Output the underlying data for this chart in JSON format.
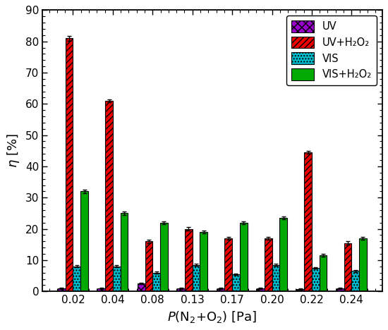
{
  "categories": [
    "0.02",
    "0.04",
    "0.08",
    "0.13",
    "0.17",
    "0.20",
    "0.22",
    "0.24"
  ],
  "UV": [
    1.0,
    1.0,
    2.5,
    1.0,
    1.0,
    1.0,
    0.8,
    1.0
  ],
  "UV_H2O2": [
    81.0,
    61.0,
    16.0,
    20.0,
    17.0,
    17.0,
    44.5,
    15.5
  ],
  "VIS": [
    8.0,
    8.0,
    6.0,
    8.5,
    5.5,
    8.5,
    7.5,
    6.5
  ],
  "VIS_H2O2": [
    32.0,
    25.0,
    22.0,
    19.0,
    22.0,
    23.5,
    11.5,
    17.0
  ],
  "UV_H2O2_err": [
    0.8,
    0.5,
    0.5,
    0.5,
    0.5,
    0.5,
    0.5,
    0.5
  ],
  "UV_err": [
    0.2,
    0.2,
    0.2,
    0.2,
    0.2,
    0.2,
    0.2,
    0.2
  ],
  "VIS_err": [
    0.3,
    0.3,
    0.3,
    0.3,
    0.3,
    0.3,
    0.3,
    0.3
  ],
  "VIS_H2O2_err": [
    0.5,
    0.5,
    0.5,
    0.5,
    0.5,
    0.5,
    0.5,
    0.5
  ],
  "color_UV": "#9900cc",
  "color_UV_H2O2": "#ee0000",
  "color_VIS": "#00bbcc",
  "color_VIS_H2O2": "#00aa00",
  "hatch_UV": "xxx",
  "hatch_UV_H2O2": "////",
  "hatch_VIS": "....",
  "hatch_VIS_H2O2": "====",
  "ylabel": "η [%]",
  "ylim": [
    0,
    90
  ],
  "yticks": [
    0,
    10,
    20,
    30,
    40,
    50,
    60,
    70,
    80,
    90
  ],
  "legend_labels": [
    "UV",
    "UV+H₂O₂",
    "VIS",
    "VIS+H₂O₂"
  ],
  "bar_width": 0.19,
  "figsize": [
    5.5,
    4.68
  ],
  "dpi": 100
}
